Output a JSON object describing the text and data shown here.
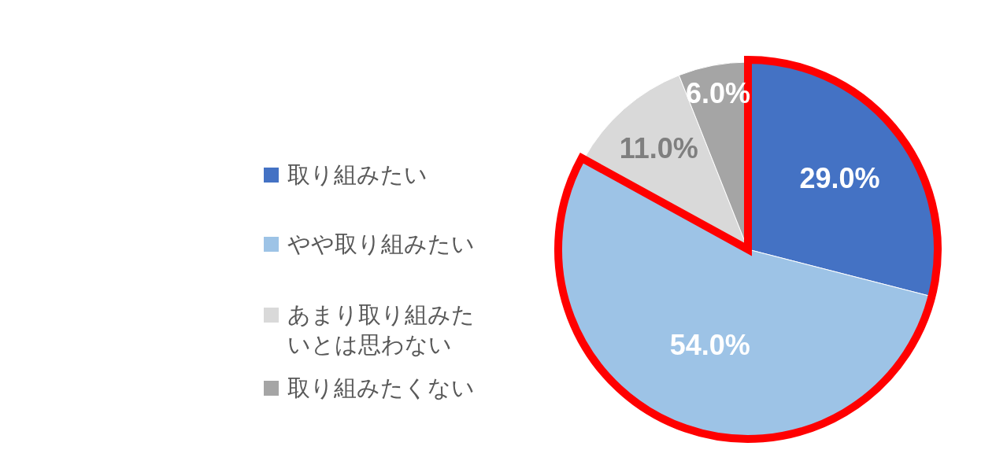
{
  "chart_data": {
    "type": "pie",
    "categories": [
      "取り組みたい",
      "やや取り組みたい",
      "あまり取り組みたいとは思わない",
      "取り組みたくない"
    ],
    "values": [
      29,
      54,
      11,
      6
    ],
    "colors": [
      "#4472c4",
      "#9dc3e6",
      "#d9d9d9",
      "#a5a5a5"
    ],
    "value_labels": [
      "29.0%",
      "54.0%",
      "11.0%",
      "6.0%"
    ],
    "legend": "left"
  }
}
